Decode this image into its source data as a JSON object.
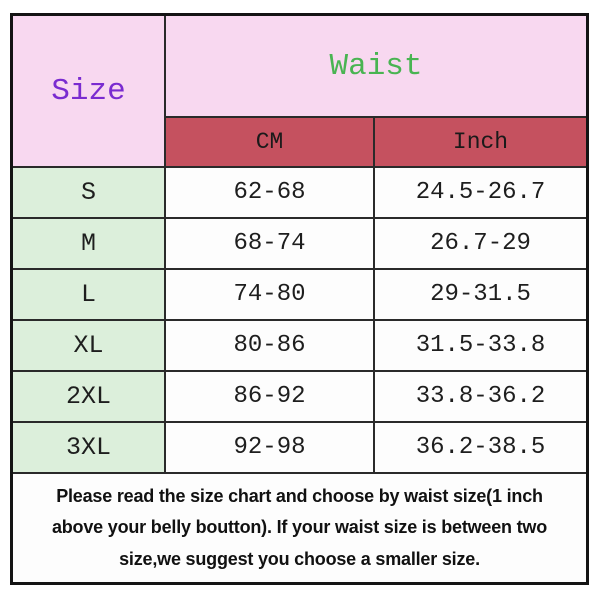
{
  "table": {
    "header": {
      "size": "Size",
      "waist": "Waist",
      "cm": "CM",
      "inch": "Inch"
    },
    "rows": [
      {
        "size": "S",
        "cm": "62-68",
        "inch": "24.5-26.7"
      },
      {
        "size": "M",
        "cm": "68-74",
        "inch": "26.7-29"
      },
      {
        "size": "L",
        "cm": "74-80",
        "inch": "29-31.5"
      },
      {
        "size": "XL",
        "cm": "80-86",
        "inch": "31.5-33.8"
      },
      {
        "size": "2XL",
        "cm": "86-92",
        "inch": "33.8-36.2"
      },
      {
        "size": "3XL",
        "cm": "92-98",
        "inch": "36.2-38.5"
      }
    ],
    "note_lines": [
      "Please read the size chart and choose by waist size(1 inch",
      "above your belly boutton). If your waist size is between two",
      "size,we suggest you choose a smaller size."
    ]
  },
  "colors": {
    "header_pink": "#f8d8f0",
    "subheader_red": "#c5515f",
    "size_column_green": "#dcefdb",
    "cell_white": "#fdfdfd",
    "size_text_purple": "#7a2bd0",
    "waist_text_green": "#49b452",
    "grid_line": "#2a2a2a",
    "note_text": "#111111"
  },
  "chart_data": {
    "type": "table",
    "title": "",
    "columns": [
      "Size",
      "Waist CM",
      "Waist Inch"
    ],
    "rows": [
      [
        "S",
        "62-68",
        "24.5-26.7"
      ],
      [
        "M",
        "68-74",
        "26.7-29"
      ],
      [
        "L",
        "74-80",
        "29-31.5"
      ],
      [
        "XL",
        "80-86",
        "31.5-33.8"
      ],
      [
        "2XL",
        "86-92",
        "33.8-36.2"
      ],
      [
        "3XL",
        "92-98",
        "36.2-38.5"
      ]
    ],
    "note": "Please read the size chart and choose by waist size(1 inch above your belly boutton). If your waist size is between two size,we suggest you choose a smaller size."
  }
}
